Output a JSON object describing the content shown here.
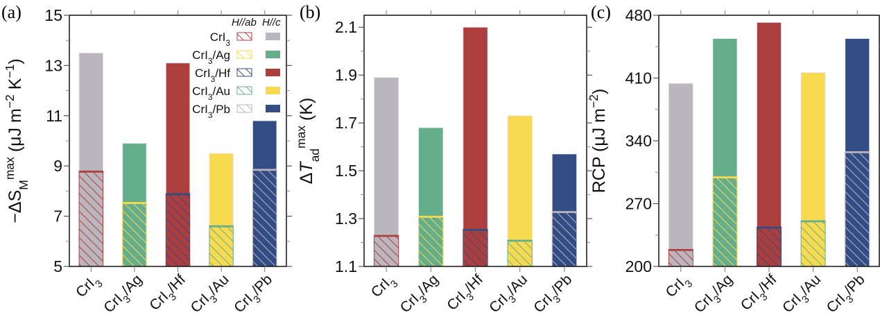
{
  "categories": [
    {
      "base": "CrI",
      "sub": "3",
      "suffix": ""
    },
    {
      "base": "CrI",
      "sub": "3",
      "suffix": "/Ag"
    },
    {
      "base": "CrI",
      "sub": "3",
      "suffix": "/Hf"
    },
    {
      "base": "CrI",
      "sub": "3",
      "suffix": "/Au"
    },
    {
      "base": "CrI",
      "sub": "3",
      "suffix": "/Pb"
    }
  ],
  "colors": {
    "c": [
      "#bbb6bd",
      "#64ae8b",
      "#ad3e3e",
      "#f7da50",
      "#324d86"
    ],
    "ab_hatch": [
      "#ad3e3e",
      "#f7da50",
      "#324d86",
      "#64ae8b",
      "#bbb6bd"
    ]
  },
  "legend": {
    "header_ab": "H//ab",
    "header_c": "H//c",
    "placement": "top-right",
    "entries": [
      {
        "base": "CrI",
        "sub": "3",
        "suffix": ""
      },
      {
        "base": "CrI",
        "sub": "3",
        "suffix": "/Ag"
      },
      {
        "base": "CrI",
        "sub": "3",
        "suffix": "/Hf"
      },
      {
        "base": "CrI",
        "sub": "3",
        "suffix": "/Au"
      },
      {
        "base": "CrI",
        "sub": "3",
        "suffix": "/Pb"
      }
    ]
  },
  "chart_data": [
    {
      "panel": "(a)",
      "type": "bar",
      "ylabel_parts": [
        {
          "t": "−ΔS"
        },
        {
          "t": "M",
          "sub": true
        },
        {
          "t": "max",
          "sup": true
        },
        {
          "t": " (μJ m"
        },
        {
          "t": "−2",
          "sup": true
        },
        {
          "t": " K"
        },
        {
          "t": "−1",
          "sup": true
        },
        {
          "t": ")"
        }
      ],
      "ylim": [
        5,
        15
      ],
      "yticks": [
        "5",
        "7",
        "9",
        "11",
        "13",
        "15"
      ],
      "minor_step": 1,
      "series": [
        {
          "name": "H//c",
          "values": [
            13.5,
            9.9,
            13.1,
            9.5,
            10.8
          ]
        },
        {
          "name": "H//ab",
          "values": [
            8.8,
            7.55,
            7.9,
            6.62,
            8.87
          ]
        }
      ],
      "legend": true
    },
    {
      "panel": "(b)",
      "type": "bar",
      "ylabel_parts": [
        {
          "t": "Δ"
        },
        {
          "t": "T",
          "italic": true
        },
        {
          "t": "ad",
          "sub": true
        },
        {
          "t": "max",
          "sup": true
        },
        {
          "t": " (K)"
        }
      ],
      "ylim": [
        1.1,
        2.15
      ],
      "yticks": [
        "1.1",
        "1.3",
        "1.5",
        "1.7",
        "1.9",
        "2.1"
      ],
      "minor_step": 0.1,
      "series": [
        {
          "name": "H//c",
          "values": [
            1.89,
            1.68,
            2.1,
            1.73,
            1.57
          ]
        },
        {
          "name": "H//ab",
          "values": [
            1.23,
            1.31,
            1.255,
            1.21,
            1.33
          ]
        }
      ],
      "legend": false
    },
    {
      "panel": "(c)",
      "type": "bar",
      "ylabel_parts": [
        {
          "t": "RCP (μJ m"
        },
        {
          "t": "−2",
          "sup": true
        },
        {
          "t": ")"
        }
      ],
      "ylim": [
        200,
        480
      ],
      "yticks": [
        "200",
        "270",
        "340",
        "410",
        "480"
      ],
      "minor_step": 35,
      "series": [
        {
          "name": "H//c",
          "values": [
            404,
            454,
            472,
            416,
            454
          ]
        },
        {
          "name": "H//ab",
          "values": [
            219,
            300,
            244,
            251,
            328
          ]
        }
      ],
      "legend": false
    }
  ]
}
